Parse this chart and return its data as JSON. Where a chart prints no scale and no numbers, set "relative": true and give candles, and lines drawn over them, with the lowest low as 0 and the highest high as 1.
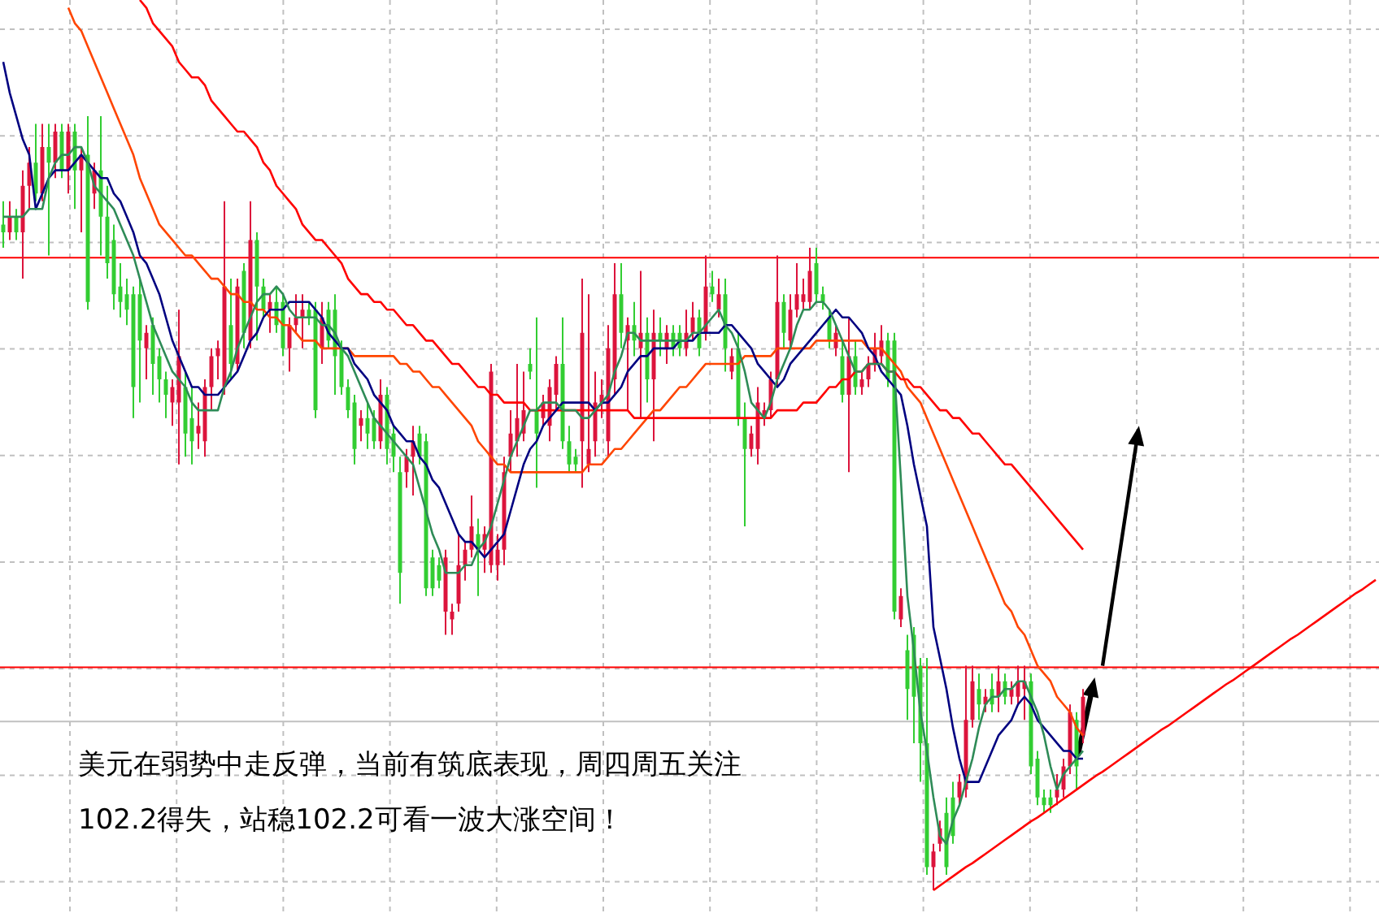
{
  "chart_data": {
    "type": "candlestick",
    "relative": true,
    "grid": true,
    "categories": [
      null,
      null,
      null,
      null,
      null,
      null,
      null,
      null,
      null,
      null,
      null,
      null,
      null,
      null,
      null,
      null,
      null,
      null,
      null,
      null,
      null,
      null,
      null,
      null,
      null,
      null,
      null,
      null,
      null,
      null,
      null,
      null,
      null,
      null,
      null,
      null,
      null,
      null,
      null,
      null,
      null,
      null,
      null,
      null,
      null,
      null,
      null,
      null,
      null,
      null,
      null,
      null,
      null,
      null,
      null,
      null,
      null,
      null,
      null,
      null,
      null,
      null,
      null,
      null,
      null,
      null,
      null,
      null,
      null,
      null,
      null,
      null,
      null,
      null,
      null,
      null,
      null,
      null,
      null,
      null,
      null,
      null,
      null,
      null,
      null,
      null,
      null,
      null,
      null,
      null,
      null,
      null,
      null,
      null,
      null,
      null,
      null,
      null,
      null,
      null,
      null,
      null,
      null,
      null,
      null,
      null,
      null,
      null,
      null,
      null,
      null,
      null,
      null,
      null,
      null,
      null,
      null,
      null,
      null,
      null,
      null,
      null,
      null,
      null,
      null,
      null,
      null,
      null,
      null,
      null,
      null,
      null,
      null,
      null,
      null,
      null,
      null,
      null,
      null,
      null,
      null,
      null,
      null,
      null,
      null,
      null,
      null,
      null,
      null,
      null,
      null,
      null,
      null,
      null,
      null,
      null,
      null,
      null,
      null,
      null,
      null,
      null,
      null,
      null,
      null,
      null,
      null,
      null,
      null,
      null,
      null,
      null,
      null,
      null,
      null,
      null,
      null,
      null,
      null,
      null,
      null,
      null,
      null,
      null,
      null,
      null,
      null,
      null,
      null,
      null,
      null,
      null,
      null,
      null,
      null,
      null,
      null,
      null,
      null,
      null,
      null,
      null,
      null,
      null,
      null,
      null,
      null,
      null,
      null,
      null,
      null,
      null
    ],
    "ohlc": [
      [
        0.86,
        0.89,
        0.83,
        0.85
      ],
      [
        0.85,
        0.89,
        0.84,
        0.87
      ],
      [
        0.87,
        0.88,
        0.84,
        0.85
      ],
      [
        0.85,
        0.93,
        0.79,
        0.91
      ],
      [
        0.91,
        0.96,
        0.88,
        0.94
      ],
      [
        0.94,
        0.99,
        0.89,
        0.9
      ],
      [
        0.9,
        0.99,
        0.89,
        0.96
      ],
      [
        0.96,
        0.99,
        0.82,
        0.94
      ],
      [
        0.94,
        0.99,
        0.92,
        0.98
      ],
      [
        0.98,
        0.99,
        0.92,
        0.93
      ],
      [
        0.93,
        0.99,
        0.9,
        0.98
      ],
      [
        0.98,
        0.99,
        0.88,
        0.93
      ],
      [
        0.93,
        0.96,
        0.85,
        0.95
      ],
      [
        0.95,
        1.0,
        0.75,
        0.76
      ],
      [
        0.9,
        0.94,
        0.88,
        0.93
      ],
      [
        0.93,
        1.0,
        0.82,
        0.87
      ],
      [
        0.87,
        0.91,
        0.79,
        0.81
      ],
      [
        0.84,
        0.86,
        0.75,
        0.77
      ],
      [
        0.78,
        0.81,
        0.74,
        0.76
      ],
      [
        0.77,
        0.79,
        0.73,
        0.75
      ],
      [
        0.77,
        0.78,
        0.61,
        0.65
      ],
      [
        0.77,
        0.79,
        0.63,
        0.71
      ],
      [
        0.7,
        0.73,
        0.66,
        0.72
      ],
      [
        0.73,
        0.74,
        0.64,
        0.68
      ],
      [
        0.69,
        0.7,
        0.63,
        0.66
      ],
      [
        0.66,
        0.67,
        0.61,
        0.64
      ],
      [
        0.63,
        0.66,
        0.6,
        0.65
      ],
      [
        0.63,
        0.75,
        0.55,
        0.69
      ],
      [
        0.65,
        0.67,
        0.56,
        0.59
      ],
      [
        0.61,
        0.65,
        0.55,
        0.58
      ],
      [
        0.59,
        0.63,
        0.57,
        0.6
      ],
      [
        0.58,
        0.66,
        0.56,
        0.65
      ],
      [
        0.65,
        0.7,
        0.62,
        0.69
      ],
      [
        0.69,
        0.71,
        0.66,
        0.7
      ],
      [
        0.65,
        0.89,
        0.64,
        0.78
      ],
      [
        0.73,
        0.79,
        0.66,
        0.68
      ],
      [
        0.68,
        0.79,
        0.67,
        0.78
      ],
      [
        0.8,
        0.81,
        0.7,
        0.72
      ],
      [
        0.71,
        0.89,
        0.7,
        0.84
      ],
      [
        0.84,
        0.85,
        0.71,
        0.78
      ],
      [
        0.78,
        0.79,
        0.74,
        0.75
      ],
      [
        0.75,
        0.77,
        0.72,
        0.76
      ],
      [
        0.76,
        0.78,
        0.72,
        0.73
      ],
      [
        0.76,
        0.77,
        0.69,
        0.7
      ],
      [
        0.7,
        0.74,
        0.67,
        0.73
      ],
      [
        0.73,
        0.77,
        0.72,
        0.74
      ],
      [
        0.74,
        0.77,
        0.7,
        0.75
      ],
      [
        0.75,
        0.76,
        0.73,
        0.74
      ],
      [
        0.75,
        0.76,
        0.61,
        0.62
      ],
      [
        0.7,
        0.76,
        0.68,
        0.74
      ],
      [
        0.75,
        0.76,
        0.7,
        0.71
      ],
      [
        0.75,
        0.77,
        0.64,
        0.69
      ],
      [
        0.7,
        0.71,
        0.64,
        0.65
      ],
      [
        0.65,
        0.66,
        0.61,
        0.62
      ],
      [
        0.63,
        0.64,
        0.55,
        0.57
      ],
      [
        0.6,
        0.62,
        0.58,
        0.61
      ],
      [
        0.61,
        0.63,
        0.57,
        0.59
      ],
      [
        0.61,
        0.62,
        0.57,
        0.58
      ],
      [
        0.58,
        0.66,
        0.57,
        0.64
      ],
      [
        0.64,
        0.65,
        0.55,
        0.57
      ],
      [
        0.59,
        0.6,
        0.54,
        0.56
      ],
      [
        0.54,
        0.56,
        0.37,
        0.41
      ],
      [
        0.54,
        0.57,
        0.52,
        0.56
      ],
      [
        0.56,
        0.6,
        0.51,
        0.58
      ],
      [
        0.59,
        0.6,
        0.55,
        0.56
      ],
      [
        0.58,
        0.59,
        0.38,
        0.39
      ],
      [
        0.43,
        0.44,
        0.38,
        0.39
      ],
      [
        0.42,
        0.43,
        0.39,
        0.4
      ],
      [
        0.36,
        0.44,
        0.33,
        0.43
      ],
      [
        0.35,
        0.37,
        0.33,
        0.36
      ],
      [
        0.37,
        0.46,
        0.36,
        0.42
      ],
      [
        0.42,
        0.45,
        0.4,
        0.44
      ],
      [
        0.44,
        0.51,
        0.43,
        0.47
      ],
      [
        0.46,
        0.48,
        0.38,
        0.44
      ],
      [
        0.44,
        0.47,
        0.41,
        0.46
      ],
      [
        0.42,
        0.68,
        0.41,
        0.67
      ],
      [
        0.42,
        0.46,
        0.4,
        0.44
      ],
      [
        0.44,
        0.56,
        0.42,
        0.54
      ],
      [
        0.56,
        0.62,
        0.54,
        0.59
      ],
      [
        0.58,
        0.68,
        0.56,
        0.61
      ],
      [
        0.59,
        0.67,
        0.58,
        0.62
      ],
      [
        0.68,
        0.7,
        0.66,
        0.67
      ],
      [
        0.62,
        0.74,
        0.52,
        0.59
      ],
      [
        0.61,
        0.64,
        0.6,
        0.63
      ],
      [
        0.6,
        0.66,
        0.58,
        0.65
      ],
      [
        0.64,
        0.69,
        0.62,
        0.68
      ],
      [
        0.68,
        0.74,
        0.57,
        0.58
      ],
      [
        0.58,
        0.6,
        0.54,
        0.55
      ],
      [
        0.56,
        0.57,
        0.54,
        0.55
      ],
      [
        0.58,
        0.79,
        0.52,
        0.72
      ],
      [
        0.55,
        0.77,
        0.54,
        0.57
      ],
      [
        0.58,
        0.67,
        0.56,
        0.63
      ],
      [
        0.63,
        0.66,
        0.61,
        0.64
      ],
      [
        0.58,
        0.73,
        0.56,
        0.7
      ],
      [
        0.66,
        0.81,
        0.64,
        0.77
      ],
      [
        0.77,
        0.81,
        0.7,
        0.72
      ],
      [
        0.71,
        0.74,
        0.62,
        0.73
      ],
      [
        0.73,
        0.76,
        0.69,
        0.71
      ],
      [
        0.7,
        0.8,
        0.61,
        0.72
      ],
      [
        0.72,
        0.74,
        0.63,
        0.66
      ],
      [
        0.66,
        0.75,
        0.58,
        0.72
      ],
      [
        0.72,
        0.74,
        0.69,
        0.71
      ],
      [
        0.7,
        0.73,
        0.68,
        0.72
      ],
      [
        0.72,
        0.73,
        0.69,
        0.7
      ],
      [
        0.72,
        0.73,
        0.69,
        0.7
      ],
      [
        0.7,
        0.75,
        0.69,
        0.72
      ],
      [
        0.72,
        0.76,
        0.71,
        0.74
      ],
      [
        0.74,
        0.75,
        0.69,
        0.7
      ],
      [
        0.72,
        0.82,
        0.71,
        0.78
      ],
      [
        0.78,
        0.8,
        0.76,
        0.77
      ],
      [
        0.75,
        0.79,
        0.74,
        0.77
      ],
      [
        0.77,
        0.79,
        0.67,
        0.7
      ],
      [
        0.67,
        0.7,
        0.66,
        0.69
      ],
      [
        0.7,
        0.72,
        0.6,
        0.61
      ],
      [
        0.61,
        0.63,
        0.47,
        0.57
      ],
      [
        0.57,
        0.6,
        0.56,
        0.59
      ],
      [
        0.57,
        0.65,
        0.55,
        0.63
      ],
      [
        0.61,
        0.63,
        0.6,
        0.62
      ],
      [
        0.62,
        0.67,
        0.61,
        0.66
      ],
      [
        0.66,
        0.82,
        0.65,
        0.76
      ],
      [
        0.76,
        0.77,
        0.7,
        0.72
      ],
      [
        0.71,
        0.77,
        0.7,
        0.75
      ],
      [
        0.75,
        0.81,
        0.74,
        0.77
      ],
      [
        0.76,
        0.79,
        0.75,
        0.77
      ],
      [
        0.76,
        0.83,
        0.75,
        0.8
      ],
      [
        0.81,
        0.83,
        0.76,
        0.77
      ],
      [
        0.77,
        0.78,
        0.75,
        0.76
      ],
      [
        0.74,
        0.75,
        0.7,
        0.71
      ],
      [
        0.7,
        0.73,
        0.69,
        0.72
      ],
      [
        0.69,
        0.71,
        0.63,
        0.64
      ],
      [
        0.64,
        0.74,
        0.54,
        0.69
      ],
      [
        0.69,
        0.71,
        0.64,
        0.65
      ],
      [
        0.65,
        0.67,
        0.64,
        0.66
      ],
      [
        0.66,
        0.69,
        0.65,
        0.68
      ],
      [
        0.68,
        0.72,
        0.67,
        0.7
      ],
      [
        0.69,
        0.73,
        0.68,
        0.71
      ],
      [
        0.71,
        0.72,
        0.65,
        0.66
      ],
      [
        0.71,
        0.72,
        0.35,
        0.36
      ],
      [
        0.35,
        0.39,
        0.34,
        0.38
      ],
      [
        0.31,
        0.33,
        0.22,
        0.26
      ],
      [
        0.33,
        0.34,
        0.19,
        0.25
      ],
      [
        0.29,
        0.3,
        0.14,
        0.19
      ],
      [
        0.19,
        0.3,
        0.02,
        0.03
      ],
      [
        0.03,
        0.06,
        0.0,
        0.05
      ],
      [
        0.06,
        0.09,
        0.05,
        0.08
      ],
      [
        0.1,
        0.12,
        0.02,
        0.03
      ],
      [
        0.12,
        0.14,
        0.06,
        0.07
      ],
      [
        0.12,
        0.15,
        0.11,
        0.14
      ],
      [
        0.13,
        0.29,
        0.12,
        0.22
      ],
      [
        0.22,
        0.29,
        0.21,
        0.27
      ],
      [
        0.26,
        0.28,
        0.22,
        0.24
      ],
      [
        0.24,
        0.26,
        0.23,
        0.25
      ],
      [
        0.26,
        0.28,
        0.23,
        0.24
      ],
      [
        0.25,
        0.29,
        0.23,
        0.27
      ],
      [
        0.27,
        0.28,
        0.24,
        0.25
      ],
      [
        0.25,
        0.27,
        0.24,
        0.26
      ],
      [
        0.25,
        0.29,
        0.24,
        0.27
      ],
      [
        0.26,
        0.29,
        0.22,
        0.27
      ],
      [
        0.27,
        0.28,
        0.15,
        0.16
      ],
      [
        0.17,
        0.18,
        0.11,
        0.12
      ],
      [
        0.12,
        0.13,
        0.1,
        0.11
      ],
      [
        0.12,
        0.13,
        0.1,
        0.11
      ],
      [
        0.12,
        0.15,
        0.11,
        0.13
      ],
      [
        0.13,
        0.17,
        0.12,
        0.16
      ],
      [
        0.16,
        0.24,
        0.15,
        0.23
      ],
      [
        0.22,
        0.23,
        0.13,
        0.16
      ],
      [
        0.2,
        0.26,
        0.19,
        0.25
      ],
      null,
      null,
      null,
      null,
      null,
      null,
      null,
      null,
      null,
      null,
      null,
      null,
      null,
      null,
      null,
      null,
      null,
      null,
      null,
      null,
      null,
      null,
      null,
      null,
      null,
      null,
      null,
      null,
      null,
      null,
      null,
      null,
      null,
      null,
      null,
      null,
      null,
      null,
      null,
      null,
      null,
      null,
      null,
      null,
      null
    ],
    "colors": [
      "#32cd32",
      "#dc143c",
      "#32cd32",
      "#dc143c",
      "#dc143c",
      "#32cd32",
      "#dc143c",
      "#32cd32",
      "#dc143c",
      "#32cd32",
      "#dc143c",
      "#32cd32",
      "#dc143c",
      "#32cd32",
      "#dc143c",
      "#32cd32",
      "#32cd32",
      "#32cd32",
      "#32cd32",
      "#32cd32",
      "#32cd32",
      "#32cd32",
      "#dc143c",
      "#32cd32",
      "#32cd32",
      "#32cd32",
      "#dc143c",
      "#dc143c",
      "#32cd32",
      "#32cd32",
      "#dc143c",
      "#dc143c",
      "#dc143c",
      "#dc143c",
      "#dc143c",
      "#32cd32",
      "#dc143c",
      "#32cd32",
      "#dc143c",
      "#32cd32",
      "#32cd32",
      "#dc143c",
      "#32cd32",
      "#32cd32",
      "#dc143c",
      "#dc143c",
      "#dc143c",
      "#32cd32",
      "#32cd32",
      "#dc143c",
      "#32cd32",
      "#32cd32",
      "#32cd32",
      "#32cd32",
      "#32cd32",
      "#dc143c",
      "#32cd32",
      "#32cd32",
      "#dc143c",
      "#32cd32",
      "#32cd32",
      "#32cd32",
      "#dc143c",
      "#dc143c",
      "#32cd32",
      "#32cd32",
      "#32cd32",
      "#32cd32",
      "#dc143c",
      "#dc143c",
      "#dc143c",
      "#dc143c",
      "#dc143c",
      "#32cd32",
      "#dc143c",
      "#dc143c",
      "#dc143c",
      "#dc143c",
      "#dc143c",
      "#dc143c",
      "#dc143c",
      "#32cd32",
      "#32cd32",
      "#dc143c",
      "#dc143c",
      "#dc143c",
      "#32cd32",
      "#32cd32",
      "#32cd32",
      "#dc143c",
      "#dc143c",
      "#dc143c",
      "#dc143c",
      "#dc143c",
      "#dc143c",
      "#32cd32",
      "#dc143c",
      "#32cd32",
      "#dc143c",
      "#32cd32",
      "#dc143c",
      "#32cd32",
      "#dc143c",
      "#32cd32",
      "#32cd32",
      "#dc143c",
      "#dc143c",
      "#32cd32",
      "#dc143c",
      "#32cd32",
      "#dc143c",
      "#32cd32",
      "#dc143c",
      "#32cd32",
      "#32cd32",
      "#dc143c",
      "#dc143c",
      "#dc143c",
      "#dc143c",
      "#dc143c",
      "#32cd32",
      "#dc143c",
      "#dc143c",
      "#dc143c",
      "#dc143c",
      "#32cd32",
      "#32cd32",
      "#32cd32",
      "#dc143c",
      "#32cd32",
      "#dc143c",
      "#32cd32",
      "#dc143c",
      "#dc143c",
      "#dc143c",
      "#dc143c",
      "#32cd32",
      "#32cd32",
      "#dc143c",
      "#32cd32",
      "#32cd32",
      "#32cd32",
      "#32cd32",
      "#dc143c",
      "#dc143c",
      "#32cd32",
      "#32cd32",
      "#dc143c",
      "#dc143c",
      "#dc143c",
      "#32cd32",
      "#dc143c",
      "#32cd32",
      "#dc143c",
      "#32cd32",
      "#dc143c",
      "#dc143c",
      "#dc143c",
      "#32cd32",
      "#32cd32",
      "#32cd32",
      "#32cd32",
      "#dc143c",
      "#dc143c",
      "#dc143c",
      "#32cd32",
      "#dc143c",
      null,
      null,
      null,
      null,
      null,
      null,
      null,
      null,
      null,
      null,
      null,
      null,
      null,
      null,
      null,
      null,
      null,
      null,
      null,
      null,
      null,
      null,
      null,
      null,
      null,
      null,
      null,
      null,
      null,
      null,
      null,
      null,
      null,
      null,
      null,
      null,
      null,
      null,
      null,
      null,
      null,
      null,
      null,
      null,
      null
    ],
    "series": [
      {
        "type": "line",
        "color": "#2e8b57",
        "values": [
          0.87,
          0.87,
          0.87,
          0.87,
          0.88,
          0.88,
          0.88,
          0.92,
          0.94,
          0.95,
          0.95,
          0.96,
          0.96,
          0.94,
          0.91,
          0.9,
          0.89,
          0.88,
          0.86,
          0.84,
          0.82,
          0.79,
          0.76,
          0.73,
          0.71,
          0.69,
          0.67,
          0.66,
          0.65,
          0.63,
          0.62,
          0.62,
          0.62,
          0.62,
          0.65,
          0.67,
          0.7,
          0.72,
          0.74,
          0.76,
          0.77,
          0.77,
          0.78,
          0.77,
          0.75,
          0.74,
          0.74,
          0.74,
          0.74,
          0.73,
          0.73,
          0.72,
          0.7,
          0.69,
          0.67,
          0.65,
          0.63,
          0.61,
          0.6,
          0.59,
          0.58,
          0.57,
          0.56,
          0.55,
          0.52,
          0.49,
          0.46,
          0.44,
          0.41,
          0.41,
          0.41,
          0.42,
          0.42,
          0.44,
          0.45,
          0.47,
          0.5,
          0.53,
          0.56,
          0.58,
          0.6,
          0.62,
          0.62,
          0.63,
          0.63,
          0.63,
          0.62,
          0.62,
          0.62,
          0.61,
          0.61,
          0.62,
          0.63,
          0.64,
          0.67,
          0.69,
          0.72,
          0.72,
          0.71,
          0.71,
          0.71,
          0.71,
          0.71,
          0.71,
          0.71,
          0.71,
          0.72,
          0.72,
          0.73,
          0.74,
          0.75,
          0.73,
          0.72,
          0.7,
          0.67,
          0.63,
          0.62,
          0.61,
          0.63,
          0.66,
          0.68,
          0.7,
          0.73,
          0.75,
          0.75,
          0.76,
          0.76,
          0.75,
          0.73,
          0.71,
          0.69,
          0.67,
          0.67,
          0.68,
          0.68,
          0.68,
          0.67,
          0.67,
          0.53,
          0.38,
          0.31,
          0.23,
          0.18,
          0.12,
          0.07,
          0.06,
          0.09,
          0.11,
          0.14,
          0.17,
          0.21,
          0.24,
          0.25,
          0.25,
          0.26,
          0.26,
          0.27,
          0.27,
          0.25,
          0.23,
          0.2,
          0.16,
          0.13,
          0.15,
          0.16,
          0.17,
          0.18,
          null,
          null,
          null,
          null,
          null,
          null,
          null,
          null,
          null,
          null,
          null,
          null,
          null,
          null,
          null,
          null,
          null,
          null,
          null,
          null,
          null,
          null,
          null,
          null,
          null,
          null,
          null,
          null,
          null,
          null,
          null,
          null,
          null,
          null,
          null,
          null,
          null,
          null,
          null,
          null,
          null,
          null,
          null,
          null,
          null
        ]
      },
      {
        "type": "line",
        "color": "#000080",
        "values": [
          1.07,
          1.03,
          1.0,
          0.97,
          0.95,
          0.88,
          0.9,
          0.92,
          0.93,
          0.93,
          0.93,
          0.94,
          0.95,
          0.94,
          0.93,
          0.92,
          0.92,
          0.9,
          0.89,
          0.87,
          0.85,
          0.82,
          0.81,
          0.79,
          0.77,
          0.74,
          0.71,
          0.69,
          0.67,
          0.65,
          0.65,
          0.64,
          0.64,
          0.64,
          0.65,
          0.66,
          0.67,
          0.69,
          0.71,
          0.72,
          0.74,
          0.75,
          0.75,
          0.75,
          0.76,
          0.76,
          0.76,
          0.76,
          0.75,
          0.74,
          0.72,
          0.71,
          0.7,
          0.7,
          0.68,
          0.67,
          0.66,
          0.64,
          0.63,
          0.62,
          0.6,
          0.59,
          0.58,
          0.58,
          0.56,
          0.55,
          0.53,
          0.52,
          0.5,
          0.48,
          0.46,
          0.45,
          0.45,
          0.44,
          0.43,
          0.44,
          0.45,
          0.46,
          0.49,
          0.52,
          0.55,
          0.57,
          0.58,
          0.6,
          0.61,
          0.62,
          0.63,
          0.63,
          0.63,
          0.63,
          0.63,
          0.62,
          0.63,
          0.63,
          0.64,
          0.65,
          0.67,
          0.68,
          0.69,
          0.69,
          0.7,
          0.7,
          0.7,
          0.7,
          0.71,
          0.71,
          0.71,
          0.72,
          0.72,
          0.72,
          0.72,
          0.73,
          0.73,
          0.72,
          0.71,
          0.7,
          0.68,
          0.67,
          0.66,
          0.65,
          0.66,
          0.68,
          0.69,
          0.7,
          0.71,
          0.72,
          0.73,
          0.74,
          0.75,
          0.74,
          0.74,
          0.73,
          0.72,
          0.7,
          0.69,
          0.67,
          0.66,
          0.65,
          0.64,
          0.6,
          0.55,
          0.51,
          0.47,
          0.34,
          0.3,
          0.26,
          0.21,
          0.17,
          0.14,
          0.14,
          0.14,
          0.16,
          0.18,
          0.2,
          0.21,
          0.22,
          0.24,
          0.25,
          0.24,
          0.22,
          0.21,
          0.2,
          0.19,
          0.18,
          0.18,
          0.17,
          0.17,
          null,
          null,
          null,
          null,
          null,
          null,
          null,
          null,
          null,
          null,
          null,
          null,
          null,
          null,
          null,
          null,
          null,
          null,
          null,
          null,
          null,
          null,
          null,
          null,
          null,
          null,
          null,
          null,
          null,
          null,
          null,
          null,
          null,
          null,
          null,
          null,
          null,
          null,
          null,
          null,
          null,
          null,
          null,
          null,
          null
        ]
      },
      {
        "type": "line",
        "color": "#ff4500",
        "values": [
          null,
          null,
          null,
          null,
          null,
          null,
          null,
          null,
          null,
          null,
          1.14,
          1.12,
          1.11,
          1.09,
          1.07,
          1.05,
          1.03,
          1.01,
          0.99,
          0.97,
          0.95,
          0.92,
          0.9,
          0.88,
          0.86,
          0.85,
          0.84,
          0.83,
          0.82,
          0.82,
          0.81,
          0.8,
          0.79,
          0.79,
          0.78,
          0.77,
          0.77,
          0.76,
          0.76,
          0.75,
          0.75,
          0.74,
          0.74,
          0.73,
          0.73,
          0.72,
          0.71,
          0.71,
          0.71,
          0.7,
          0.7,
          0.7,
          0.7,
          0.7,
          0.69,
          0.69,
          0.69,
          0.69,
          0.69,
          0.69,
          0.69,
          0.68,
          0.68,
          0.67,
          0.67,
          0.66,
          0.65,
          0.65,
          0.64,
          0.63,
          0.62,
          0.61,
          0.6,
          0.58,
          0.57,
          0.56,
          0.55,
          0.55,
          0.54,
          0.54,
          0.54,
          0.54,
          0.54,
          0.54,
          0.54,
          0.54,
          0.54,
          0.54,
          0.54,
          0.54,
          0.55,
          0.55,
          0.55,
          0.56,
          0.57,
          0.57,
          0.58,
          0.59,
          0.6,
          0.61,
          0.62,
          0.62,
          0.63,
          0.64,
          0.65,
          0.65,
          0.66,
          0.67,
          0.68,
          0.68,
          0.68,
          0.68,
          0.68,
          0.68,
          0.69,
          0.69,
          0.69,
          0.69,
          0.69,
          0.7,
          0.7,
          0.7,
          0.7,
          0.7,
          0.7,
          0.71,
          0.71,
          0.71,
          0.71,
          0.71,
          0.71,
          0.71,
          0.71,
          0.7,
          0.7,
          0.7,
          0.69,
          0.68,
          0.67,
          0.65,
          0.64,
          0.63,
          0.61,
          0.59,
          0.57,
          0.55,
          0.53,
          0.51,
          0.49,
          0.47,
          0.45,
          0.43,
          0.41,
          0.39,
          0.37,
          0.36,
          0.34,
          0.33,
          0.31,
          0.29,
          0.28,
          0.27,
          0.25,
          0.24,
          0.23,
          0.21,
          0.2,
          null,
          null,
          null,
          null,
          null,
          null,
          null,
          null,
          null,
          null,
          null,
          null,
          null,
          null,
          null,
          null,
          null,
          null,
          null,
          null,
          null,
          null,
          null,
          null,
          null,
          null,
          null,
          null,
          null,
          null,
          null,
          null,
          null,
          null,
          null,
          null,
          null,
          null,
          null,
          null,
          null,
          null,
          null,
          null,
          null
        ]
      },
      {
        "type": "line",
        "color": "#ff0000",
        "values": [
          null,
          null,
          null,
          null,
          null,
          null,
          null,
          null,
          null,
          null,
          null,
          null,
          null,
          null,
          null,
          null,
          null,
          null,
          null,
          null,
          null,
          1.15,
          1.14,
          1.12,
          1.11,
          1.1,
          1.09,
          1.07,
          1.06,
          1.05,
          1.05,
          1.04,
          1.02,
          1.01,
          1.0,
          0.99,
          0.98,
          0.98,
          0.97,
          0.96,
          0.94,
          0.93,
          0.91,
          0.9,
          0.89,
          0.88,
          0.86,
          0.85,
          0.84,
          0.84,
          0.83,
          0.82,
          0.81,
          0.79,
          0.78,
          0.77,
          0.77,
          0.76,
          0.76,
          0.75,
          0.75,
          0.74,
          0.73,
          0.73,
          0.72,
          0.71,
          0.71,
          0.7,
          0.69,
          0.68,
          0.68,
          0.67,
          0.66,
          0.65,
          0.65,
          0.64,
          0.64,
          0.63,
          0.63,
          0.63,
          0.63,
          0.62,
          0.62,
          0.62,
          0.62,
          0.62,
          0.62,
          0.62,
          0.62,
          0.62,
          0.62,
          0.62,
          0.62,
          0.62,
          0.62,
          0.62,
          0.62,
          0.61,
          0.61,
          0.61,
          0.61,
          0.61,
          0.61,
          0.61,
          0.61,
          0.61,
          0.61,
          0.61,
          0.61,
          0.61,
          0.61,
          0.61,
          0.61,
          0.61,
          0.61,
          0.61,
          0.61,
          0.61,
          0.61,
          0.62,
          0.62,
          0.62,
          0.62,
          0.63,
          0.63,
          0.63,
          0.64,
          0.65,
          0.65,
          0.66,
          0.66,
          0.67,
          0.67,
          0.68,
          0.68,
          0.68,
          0.67,
          0.67,
          0.66,
          0.66,
          0.65,
          0.65,
          0.64,
          0.63,
          0.62,
          0.62,
          0.61,
          0.61,
          0.6,
          0.59,
          0.59,
          0.58,
          0.57,
          0.56,
          0.55,
          0.55,
          0.54,
          0.53,
          0.52,
          0.51,
          0.5,
          0.49,
          0.48,
          0.47,
          0.46,
          0.45,
          0.44,
          null,
          null,
          null,
          null,
          null,
          null,
          null,
          null,
          null,
          null,
          null,
          null,
          null,
          null,
          null,
          null,
          null,
          null,
          null,
          null,
          null,
          null,
          null,
          null,
          null,
          null,
          null,
          null,
          null,
          null,
          null,
          null,
          null,
          null,
          null,
          null,
          null,
          null,
          null,
          null,
          null,
          null,
          null,
          null,
          null
        ]
      },
      {
        "type": "line",
        "color": "#ff0000",
        "values": [
          null,
          null,
          null,
          null,
          null,
          null,
          null,
          null,
          null,
          null,
          null,
          null,
          null,
          null,
          null,
          null,
          null,
          null,
          null,
          null,
          null,
          null,
          null,
          null,
          null,
          null,
          null,
          null,
          null,
          null,
          null,
          null,
          null,
          null,
          null,
          null,
          null,
          null,
          null,
          null,
          null,
          null,
          null,
          null,
          null,
          null,
          null,
          null,
          null,
          null,
          null,
          null,
          null,
          null,
          null,
          null,
          null,
          null,
          null,
          null,
          null,
          null,
          null,
          null,
          null,
          null,
          null,
          null,
          null,
          null,
          null,
          null,
          null,
          null,
          null,
          null,
          null,
          null,
          null,
          null,
          null,
          null,
          null,
          null,
          null,
          null,
          null,
          null,
          null,
          null,
          null,
          null,
          null,
          null,
          null,
          null,
          null,
          null,
          null,
          null,
          null,
          null,
          null,
          null,
          null,
          null,
          null,
          null,
          null,
          null,
          null,
          null,
          null,
          null,
          null,
          null,
          null,
          null,
          null,
          null,
          null,
          null,
          null,
          null,
          null,
          null,
          null,
          null,
          null,
          null,
          null,
          null,
          null,
          null,
          null,
          null,
          null,
          null,
          null,
          null,
          null,
          null,
          null,
          0,
          0.006,
          0.012,
          0.018,
          0.024,
          0.03,
          0.035,
          0.041,
          0.047,
          0.053,
          0.059,
          0.065,
          0.071,
          0.077,
          0.083,
          0.089,
          0.094,
          0.1,
          0.106,
          0.112,
          0.118,
          0.124,
          0.13,
          0.136,
          0.142,
          0.148,
          0.153,
          0.159,
          0.165,
          0.171,
          0.177,
          0.183,
          0.189,
          0.195,
          0.201,
          0.207,
          0.212,
          0.218,
          0.224,
          0.23,
          0.236,
          0.242,
          0.248,
          0.254,
          0.26,
          0.266,
          0.271,
          0.277,
          0.283,
          0.289,
          0.295,
          0.301,
          0.307,
          0.313,
          0.319,
          0.325,
          0.33,
          0.336,
          0.342,
          0.348,
          0.354,
          0.36,
          0.366,
          0.372,
          0.378,
          0.384,
          0.389,
          0.395,
          0.401
        ]
      }
    ],
    "ref_lines": [
      {
        "axis": "y",
        "value": 0.817,
        "color": "#ff0000"
      },
      {
        "axis": "y",
        "value": 0.288,
        "color": "#ff0000"
      },
      {
        "axis": "y",
        "value": 0.218,
        "color": "#c0c0c0"
      }
    ],
    "annotations": [
      "美元在弱势中走反弹，当前有筑底表现，周四周五关注102.2得失，站稳102.2可看一波大涨空间！"
    ]
  }
}
